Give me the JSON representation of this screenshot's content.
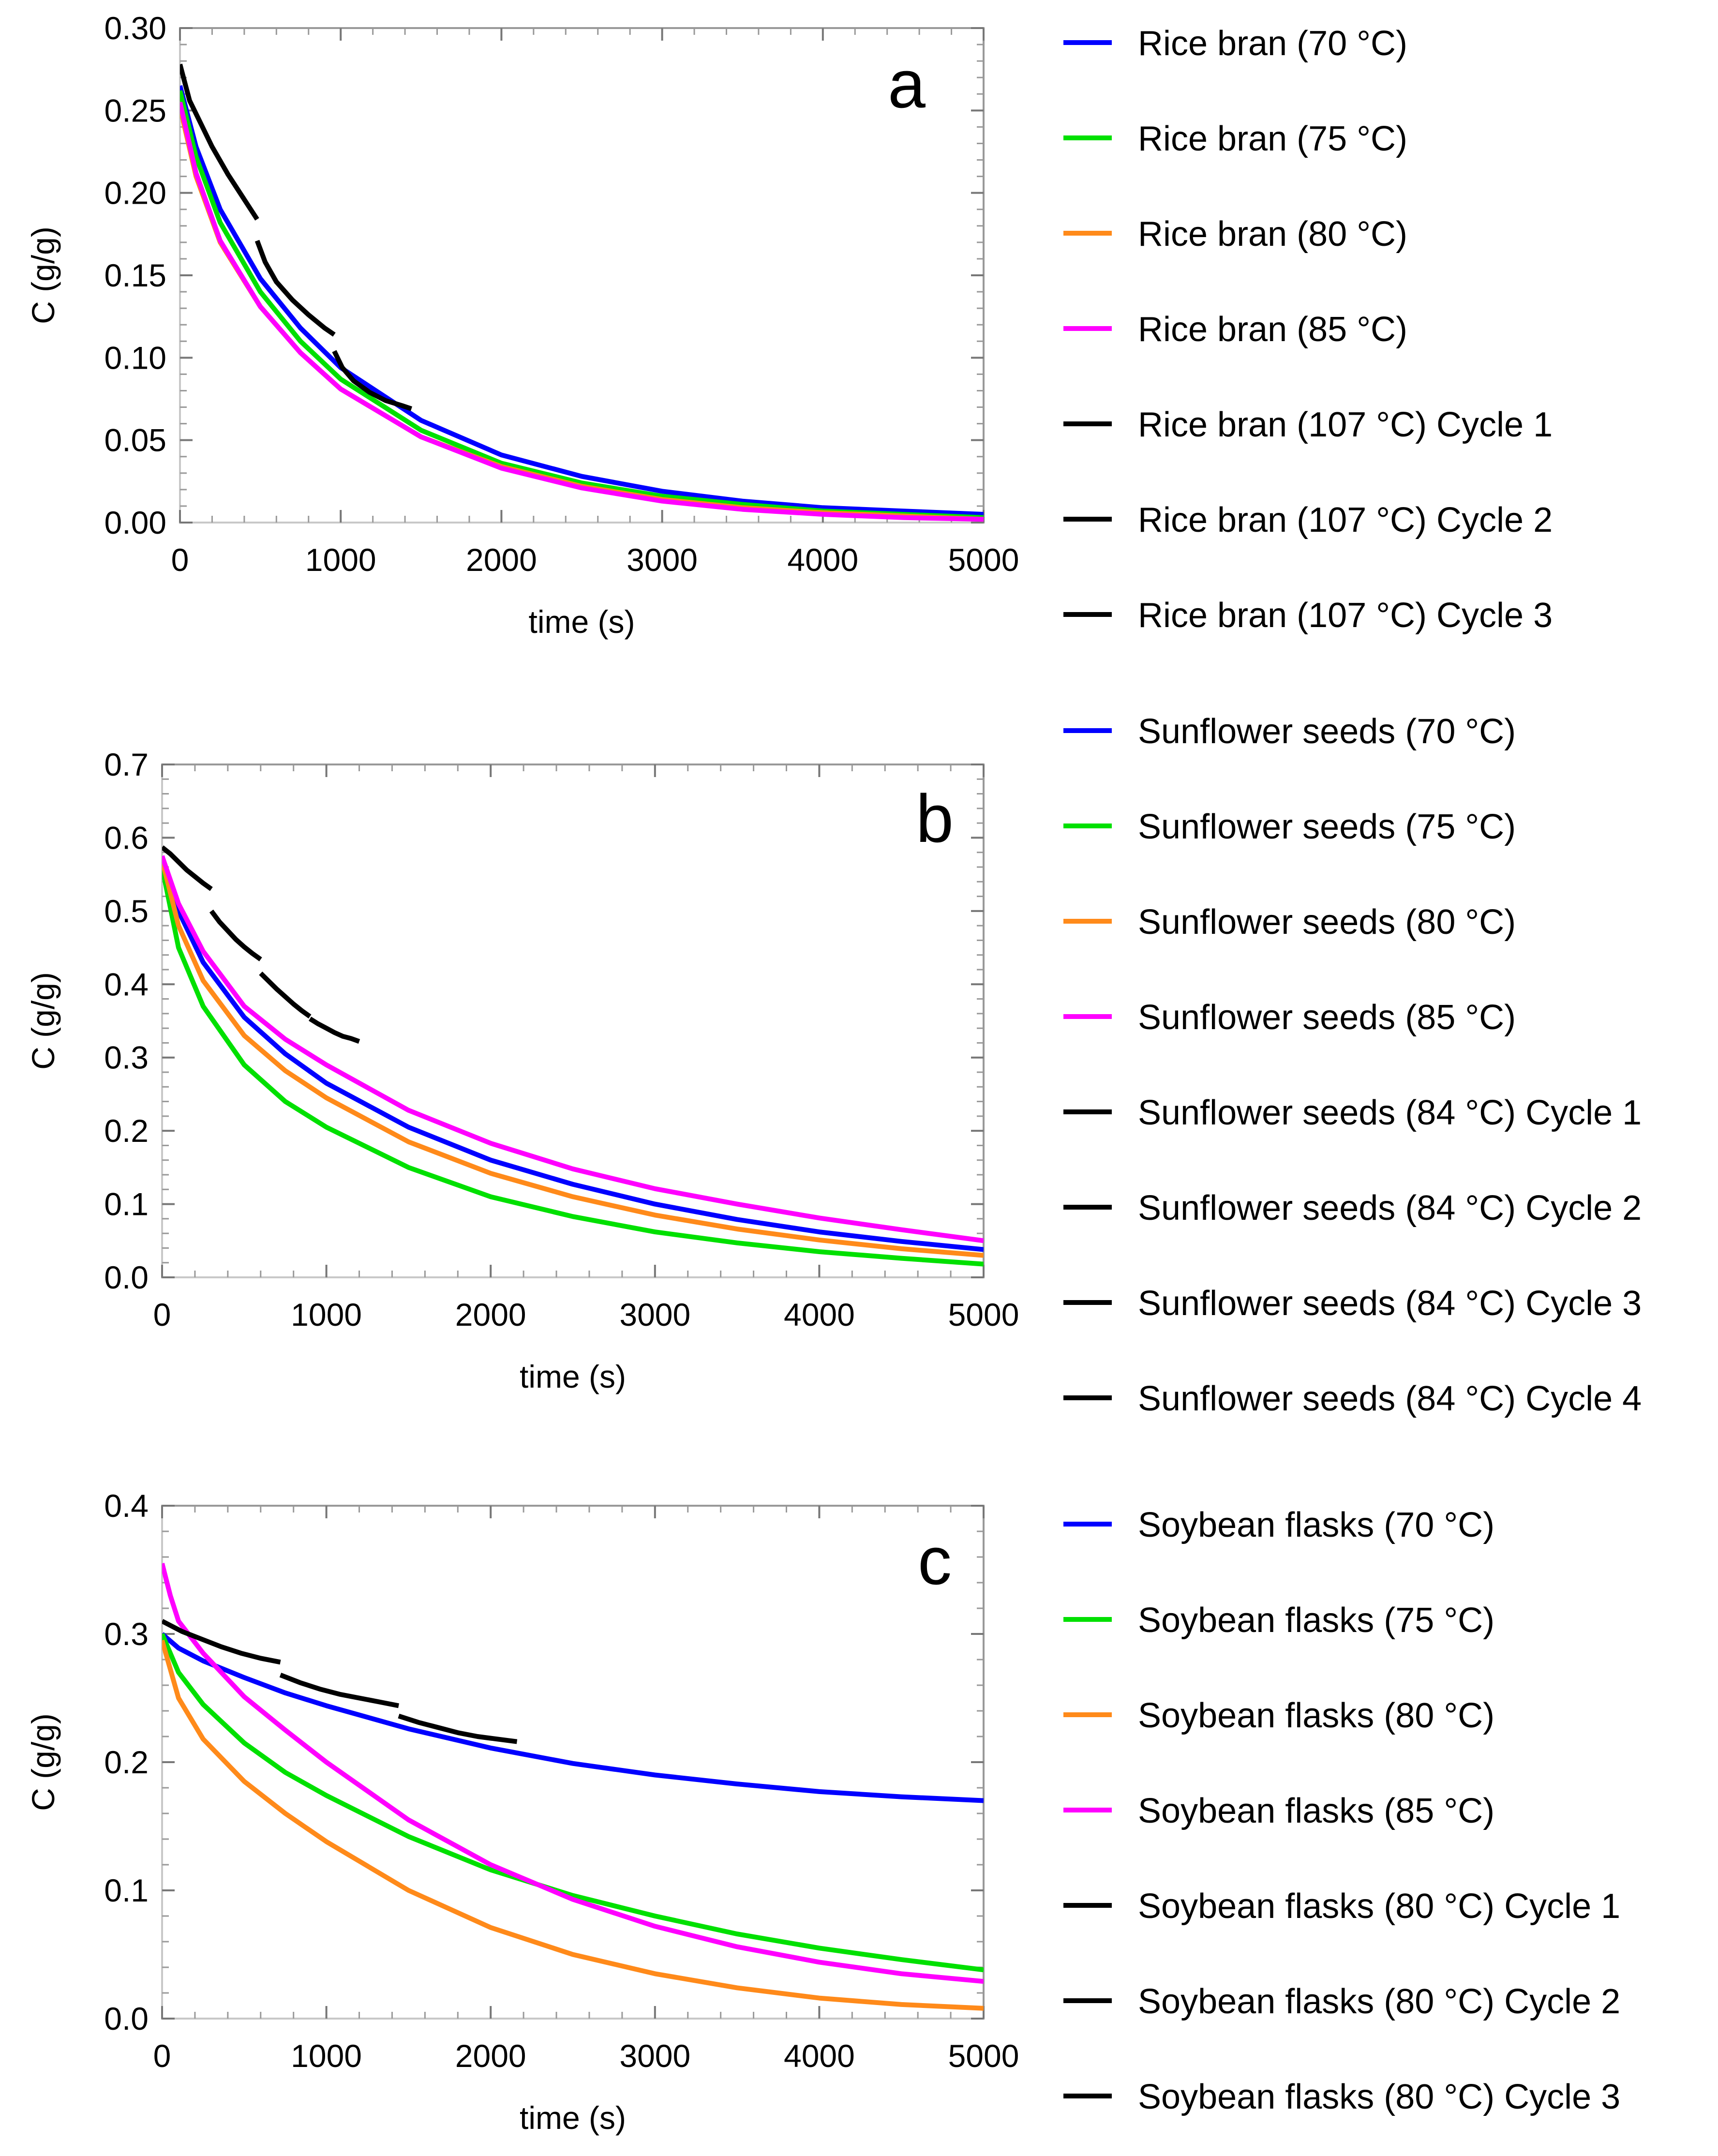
{
  "colors": {
    "c70": "#0000ff",
    "c75": "#00e000",
    "c80": "#ff8a1a",
    "c85": "#ff00ff",
    "cycle": "#000000",
    "frame": "#999999",
    "zeroline": "#c8c8c8"
  },
  "chart_data": [
    {
      "type": "line",
      "panel_label": "a",
      "xlabel": "time (s)",
      "ylabel": "C (g/g)",
      "xlim": [
        0,
        5000
      ],
      "ylim": [
        0,
        0.3
      ],
      "x_ticks": [
        0,
        1000,
        2000,
        3000,
        4000,
        5000
      ],
      "x_tick_labels": [
        "0",
        "1000",
        "2000",
        "3000",
        "4000",
        "5000"
      ],
      "y_ticks": [
        0,
        0.05,
        0.1,
        0.15,
        0.2,
        0.25,
        0.3
      ],
      "y_tick_labels": [
        "0.00",
        "0.05",
        "0.10",
        "0.15",
        "0.20",
        "0.25",
        "0.30"
      ],
      "legend_position": "right",
      "series": [
        {
          "name": "Rice bran (70 °C)",
          "color": "#0000ff",
          "x": [
            0,
            100,
            250,
            500,
            750,
            1000,
            1500,
            2000,
            2500,
            3000,
            3500,
            4000,
            4500,
            5000
          ],
          "y": [
            0.265,
            0.228,
            0.19,
            0.148,
            0.118,
            0.094,
            0.062,
            0.041,
            0.028,
            0.019,
            0.013,
            0.009,
            0.007,
            0.005
          ]
        },
        {
          "name": "Rice bran (75 °C)",
          "color": "#00e000",
          "x": [
            0,
            100,
            250,
            500,
            750,
            1000,
            1500,
            2000,
            2500,
            3000,
            3500,
            4000,
            4500,
            5000
          ],
          "y": [
            0.262,
            0.222,
            0.182,
            0.14,
            0.11,
            0.087,
            0.056,
            0.036,
            0.024,
            0.016,
            0.011,
            0.007,
            0.005,
            0.003
          ]
        },
        {
          "name": "Rice bran (80 °C)",
          "color": "#ff8a1a",
          "x": [
            0,
            100,
            250,
            500,
            750,
            1000,
            1500,
            2000,
            2500,
            3000,
            3500,
            4000,
            4500,
            5000
          ],
          "y": [
            0.252,
            0.21,
            0.17,
            0.131,
            0.103,
            0.081,
            0.052,
            0.034,
            0.022,
            0.014,
            0.009,
            0.006,
            0.004,
            0.002
          ]
        },
        {
          "name": "Rice bran (85 °C)",
          "color": "#ff00ff",
          "x": [
            0,
            100,
            250,
            500,
            750,
            1000,
            1500,
            2000,
            2500,
            3000,
            3500,
            4000,
            4500,
            5000
          ],
          "y": [
            0.255,
            0.212,
            0.171,
            0.131,
            0.103,
            0.081,
            0.052,
            0.033,
            0.021,
            0.013,
            0.008,
            0.005,
            0.003,
            0.002
          ]
        },
        {
          "name": "Rice bran (107 °C) Cycle 1",
          "color": "#000000",
          "x": [
            0,
            60,
            120,
            200,
            300,
            400,
            480
          ],
          "y": [
            0.278,
            0.256,
            0.244,
            0.228,
            0.211,
            0.196,
            0.184
          ]
        },
        {
          "name": "Rice bran (107 °C) Cycle 2",
          "color": "#000000",
          "x": [
            480,
            530,
            600,
            700,
            800,
            900,
            960
          ],
          "y": [
            0.171,
            0.158,
            0.146,
            0.135,
            0.126,
            0.118,
            0.114
          ]
        },
        {
          "name": "Rice bran (107 °C) Cycle 3",
          "color": "#000000",
          "x": [
            960,
            1010,
            1080,
            1180,
            1280,
            1380,
            1440
          ],
          "y": [
            0.104,
            0.094,
            0.086,
            0.079,
            0.074,
            0.071,
            0.069
          ]
        }
      ]
    },
    {
      "type": "line",
      "panel_label": "b",
      "xlabel": "time (s)",
      "ylabel": "C (g/g)",
      "xlim": [
        0,
        5000
      ],
      "ylim": [
        0,
        0.7
      ],
      "x_ticks": [
        0,
        1000,
        2000,
        3000,
        4000,
        5000
      ],
      "x_tick_labels": [
        "0",
        "1000",
        "2000",
        "3000",
        "4000",
        "5000"
      ],
      "y_ticks": [
        0,
        0.1,
        0.2,
        0.3,
        0.4,
        0.5,
        0.6,
        0.7
      ],
      "y_tick_labels": [
        "0.0",
        "0.1",
        "0.2",
        "0.3",
        "0.4",
        "0.5",
        "0.6",
        "0.7"
      ],
      "legend_position": "right",
      "series": [
        {
          "name": "Sunflower seeds (70 °C)",
          "color": "#0000ff",
          "x": [
            0,
            100,
            250,
            500,
            750,
            1000,
            1500,
            2000,
            2500,
            3000,
            3500,
            4000,
            4500,
            5000
          ],
          "y": [
            0.575,
            0.5,
            0.43,
            0.355,
            0.305,
            0.265,
            0.205,
            0.16,
            0.127,
            0.1,
            0.079,
            0.062,
            0.049,
            0.038
          ]
        },
        {
          "name": "Sunflower seeds (75 °C)",
          "color": "#00e000",
          "x": [
            0,
            100,
            250,
            500,
            750,
            1000,
            1500,
            2000,
            2500,
            3000,
            3500,
            4000,
            4500,
            5000
          ],
          "y": [
            0.56,
            0.45,
            0.37,
            0.29,
            0.24,
            0.205,
            0.15,
            0.11,
            0.083,
            0.062,
            0.047,
            0.035,
            0.026,
            0.018
          ]
        },
        {
          "name": "Sunflower seeds (80 °C)",
          "color": "#ff8a1a",
          "x": [
            0,
            100,
            250,
            500,
            750,
            1000,
            1500,
            2000,
            2500,
            3000,
            3500,
            4000,
            4500,
            5000
          ],
          "y": [
            0.57,
            0.48,
            0.405,
            0.33,
            0.282,
            0.245,
            0.185,
            0.142,
            0.11,
            0.085,
            0.066,
            0.051,
            0.039,
            0.03
          ]
        },
        {
          "name": "Sunflower seeds (85 °C)",
          "color": "#ff00ff",
          "x": [
            0,
            100,
            250,
            500,
            750,
            1000,
            1500,
            2000,
            2500,
            3000,
            3500,
            4000,
            4500,
            5000
          ],
          "y": [
            0.575,
            0.51,
            0.445,
            0.37,
            0.325,
            0.29,
            0.228,
            0.183,
            0.148,
            0.121,
            0.1,
            0.081,
            0.065,
            0.05
          ]
        },
        {
          "name": "Sunflower seeds (84 °C) Cycle 1",
          "color": "#000000",
          "x": [
            0,
            50,
            100,
            150,
            200,
            250,
            300
          ],
          "y": [
            0.587,
            0.578,
            0.567,
            0.556,
            0.547,
            0.538,
            0.53
          ]
        },
        {
          "name": "Sunflower seeds (84 °C) Cycle 2",
          "color": "#000000",
          "x": [
            300,
            350,
            400,
            450,
            500,
            550,
            600
          ],
          "y": [
            0.5,
            0.485,
            0.473,
            0.461,
            0.451,
            0.442,
            0.434
          ]
        },
        {
          "name": "Sunflower seeds (84 °C) Cycle 3",
          "color": "#000000",
          "x": [
            600,
            650,
            700,
            750,
            800,
            850,
            900
          ],
          "y": [
            0.415,
            0.404,
            0.393,
            0.383,
            0.373,
            0.364,
            0.356
          ]
        },
        {
          "name": "Sunflower seeds (84 °C) Cycle 4",
          "color": "#000000",
          "x": [
            900,
            950,
            1000,
            1050,
            1100,
            1150,
            1200
          ],
          "y": [
            0.353,
            0.346,
            0.34,
            0.334,
            0.329,
            0.326,
            0.322
          ]
        }
      ]
    },
    {
      "type": "line",
      "panel_label": "c",
      "xlabel": "time (s)",
      "ylabel": "C (g/g)",
      "xlim": [
        0,
        5000
      ],
      "ylim": [
        0,
        0.4
      ],
      "x_ticks": [
        0,
        1000,
        2000,
        3000,
        4000,
        5000
      ],
      "x_tick_labels": [
        "0",
        "1000",
        "2000",
        "3000",
        "4000",
        "5000"
      ],
      "y_ticks": [
        0,
        0.1,
        0.2,
        0.3,
        0.4
      ],
      "y_tick_labels": [
        "0.0",
        "0.1",
        "0.2",
        "0.3",
        "0.4"
      ],
      "legend_position": "right",
      "series": [
        {
          "name": "Soybean flasks (70 °C)",
          "color": "#0000ff",
          "x": [
            0,
            100,
            250,
            500,
            750,
            1000,
            1500,
            2000,
            2500,
            3000,
            3500,
            4000,
            4500,
            5000
          ],
          "y": [
            0.3,
            0.289,
            0.279,
            0.266,
            0.254,
            0.244,
            0.226,
            0.211,
            0.199,
            0.19,
            0.183,
            0.177,
            0.173,
            0.17
          ]
        },
        {
          "name": "Soybean flasks (75 °C)",
          "color": "#00e000",
          "x": [
            0,
            100,
            250,
            500,
            750,
            1000,
            1500,
            2000,
            2500,
            3000,
            3500,
            4000,
            4500,
            5000
          ],
          "y": [
            0.3,
            0.27,
            0.245,
            0.215,
            0.192,
            0.174,
            0.142,
            0.116,
            0.096,
            0.08,
            0.066,
            0.055,
            0.046,
            0.038
          ]
        },
        {
          "name": "Soybean flasks (80 °C)",
          "color": "#ff8a1a",
          "x": [
            0,
            100,
            250,
            500,
            750,
            1000,
            1500,
            2000,
            2500,
            3000,
            3500,
            4000,
            4500,
            5000
          ],
          "y": [
            0.295,
            0.25,
            0.218,
            0.185,
            0.16,
            0.138,
            0.1,
            0.071,
            0.05,
            0.035,
            0.024,
            0.016,
            0.011,
            0.008
          ]
        },
        {
          "name": "Soybean flasks (85 °C)",
          "color": "#ff00ff",
          "x": [
            0,
            50,
            100,
            250,
            500,
            750,
            1000,
            1500,
            2000,
            2500,
            3000,
            3500,
            4000,
            4500,
            5000
          ],
          "y": [
            0.355,
            0.33,
            0.31,
            0.285,
            0.251,
            0.225,
            0.2,
            0.155,
            0.12,
            0.093,
            0.072,
            0.056,
            0.044,
            0.035,
            0.029
          ]
        },
        {
          "name": "Soybean flasks (80 °C) Cycle 1",
          "color": "#000000",
          "x": [
            0,
            120,
            240,
            360,
            480,
            600,
            720
          ],
          "y": [
            0.31,
            0.302,
            0.296,
            0.29,
            0.285,
            0.281,
            0.278
          ]
        },
        {
          "name": "Soybean flasks (80 °C) Cycle 2",
          "color": "#000000",
          "x": [
            720,
            840,
            960,
            1080,
            1200,
            1320,
            1440
          ],
          "y": [
            0.268,
            0.262,
            0.257,
            0.253,
            0.25,
            0.247,
            0.244
          ]
        },
        {
          "name": "Soybean flasks (80 °C) Cycle 3",
          "color": "#000000",
          "x": [
            1440,
            1560,
            1680,
            1800,
            1920,
            2040,
            2160
          ],
          "y": [
            0.236,
            0.231,
            0.227,
            0.223,
            0.22,
            0.218,
            0.216
          ]
        }
      ]
    }
  ]
}
